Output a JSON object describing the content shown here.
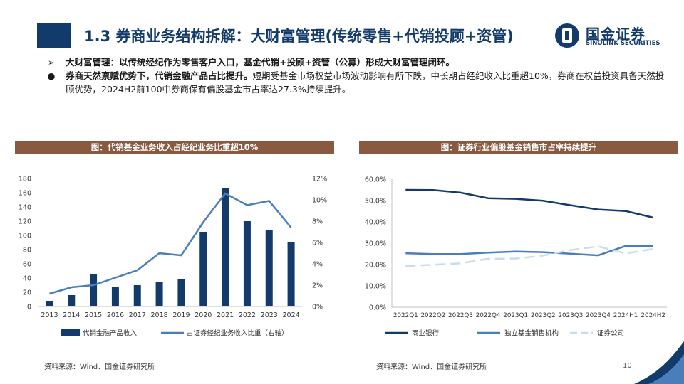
{
  "header": {
    "title": "1.3 券商业务结构拆解：大财富管理(传统零售+代销投顾+资管)",
    "logo_name": "国金证券",
    "logo_en": "SINOLINK SECURITIES"
  },
  "bullets": [
    {
      "mark": "➢",
      "bold": "大财富管理：以传统经纪作为零售客户入口，基金代销+投顾+资管（公募）形成大财富管理闭环。",
      "text": ""
    },
    {
      "mark": "●",
      "bold": "券商天然禀赋优势下，代销金融产品占比提升。",
      "text": "短期受基金市场权益市场波动影响有所下跌，中长期占经纪收入比重超10%，券商在权益投资具备天然投顾优势，2024H2前100中券商保有偏股基金市占率达27.3%持续提升。"
    }
  ],
  "page_number": "10",
  "colors": {
    "navy": "#123a6b",
    "blue": "#4a7ebb",
    "light_blue": "#c9dcee",
    "brown": "#8a5a40"
  },
  "chart_data": [
    {
      "type": "bar+line",
      "title": "图：代销基金业务收入占经纪业务比重超10%",
      "categories": [
        "2013",
        "2014",
        "2015",
        "2016",
        "2017",
        "2018",
        "2019",
        "2020",
        "2021",
        "2022",
        "2023",
        "2024"
      ],
      "ylim_left": [
        0,
        180
      ],
      "yticks_left": [
        "0",
        "20",
        "40",
        "60",
        "80",
        "100",
        "120",
        "140",
        "160",
        "180"
      ],
      "ylim_right": [
        0,
        12
      ],
      "yticks_right": [
        "0%",
        "2%",
        "4%",
        "6%",
        "8%",
        "10%",
        "12%"
      ],
      "series": [
        {
          "name": "代销金融产品收入",
          "type": "bar",
          "axis": "left",
          "color": "#123a6b",
          "values": [
            8,
            16,
            46,
            27,
            30,
            34,
            39,
            105,
            166,
            120,
            107,
            90
          ]
        },
        {
          "name": "占证券经纪业务收入比重（右轴）",
          "type": "line",
          "axis": "right",
          "color": "#4a7ebb",
          "values": [
            1.2,
            1.8,
            2.0,
            2.7,
            3.4,
            5.0,
            4.8,
            7.9,
            10.6,
            9.5,
            9.9,
            7.4
          ]
        }
      ],
      "source": "资料来源：Wind、国金证券研究所"
    },
    {
      "type": "line",
      "title": "图：证券行业偏股基金销售市占率持续提升",
      "categories": [
        "2022Q1",
        "2022Q2",
        "2022Q3",
        "2022Q4",
        "2023Q1",
        "2023Q2",
        "2023Q3",
        "2023Q4",
        "2024H1",
        "2024H2"
      ],
      "ylim": [
        0,
        60
      ],
      "yticks": [
        "0.0%",
        "10.0%",
        "20.0%",
        "30.0%",
        "40.0%",
        "50.0%",
        "60.0%"
      ],
      "series": [
        {
          "name": "商业银行",
          "color": "#123a6b",
          "dash": false,
          "values": [
            55.0,
            54.9,
            53.7,
            51.1,
            50.8,
            49.9,
            47.8,
            45.8,
            45.1,
            42.0
          ]
        },
        {
          "name": "独立基金销售机构",
          "color": "#4a7ebb",
          "dash": false,
          "values": [
            25.3,
            24.9,
            24.9,
            25.6,
            26.1,
            25.8,
            25.1,
            24.3,
            28.7,
            28.7
          ]
        },
        {
          "name": "证券公司",
          "color": "#c9dcee",
          "dash": true,
          "values": [
            19.3,
            19.9,
            20.6,
            22.7,
            22.8,
            24.2,
            26.8,
            28.5,
            25.2,
            27.3
          ]
        }
      ],
      "source": "资料来源：Wind、国金证券研究所"
    }
  ]
}
